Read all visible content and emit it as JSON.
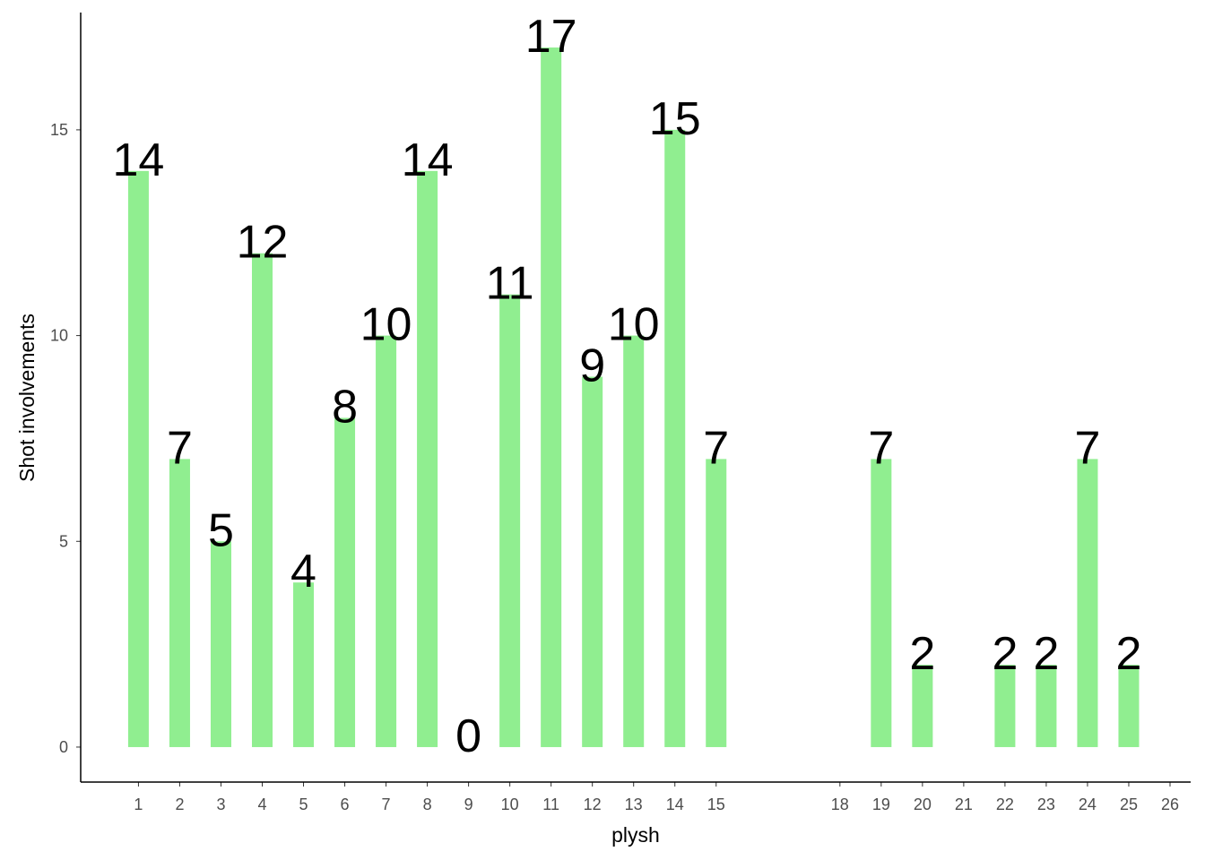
{
  "chart_data": {
    "type": "bar",
    "x": [
      1,
      2,
      3,
      4,
      5,
      6,
      7,
      8,
      9,
      10,
      11,
      12,
      13,
      14,
      15,
      19,
      20,
      22,
      23,
      24,
      25
    ],
    "values": [
      14,
      7,
      5,
      12,
      4,
      8,
      10,
      14,
      0,
      11,
      17,
      9,
      10,
      15,
      7,
      7,
      2,
      2,
      2,
      7,
      2
    ],
    "color": "#90ee90",
    "x_label": "plysh",
    "y_label": "Shot involvements",
    "xlim": [
      -0.4,
      26.5
    ],
    "ylim": [
      -0.85,
      17.85
    ],
    "xticks": [
      1,
      2,
      3,
      4,
      5,
      6,
      7,
      8,
      9,
      10,
      11,
      12,
      13,
      14,
      15,
      18,
      19,
      20,
      21,
      22,
      23,
      24,
      25,
      26
    ],
    "yticks": [
      0,
      5,
      10,
      15
    ],
    "grid": false
  }
}
